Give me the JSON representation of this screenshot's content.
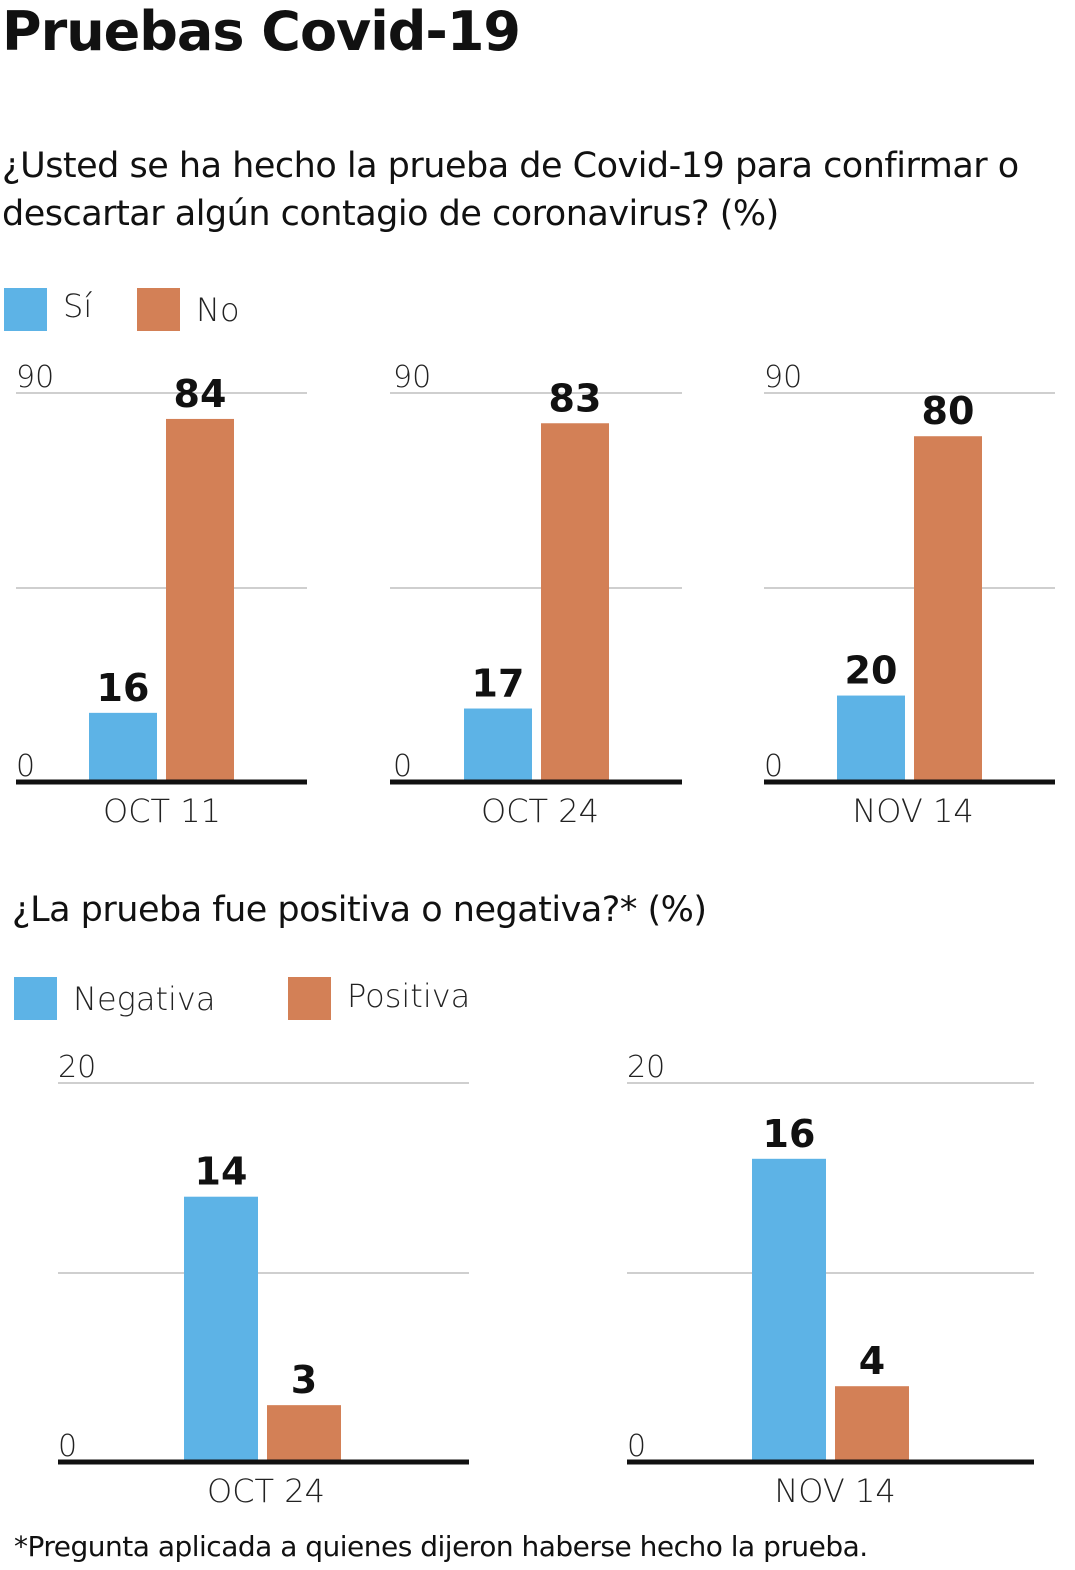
{
  "title": "Pruebas Covid-19",
  "colors": {
    "si": "#5db3e6",
    "no": "#d38056",
    "grid": "#cfcfcf",
    "axis": "#111111"
  },
  "section1": {
    "question": "¿Usted se ha hecho la prueba de Covid-19 para confirmar o descartar algún contagio de coronavirus? (%)",
    "legend": [
      {
        "label": "Sí",
        "color": "#5db3e6"
      },
      {
        "label": "No",
        "color": "#d38056"
      }
    ]
  },
  "section2": {
    "question": "¿La prueba fue positiva o negativa?* (%)",
    "legend": [
      {
        "label": "Negativa",
        "color": "#5db3e6"
      },
      {
        "label": "Positiva",
        "color": "#d38056"
      }
    ]
  },
  "chart_data": [
    {
      "type": "bar",
      "group": "section1",
      "title": "",
      "categories": [
        "OCT 11"
      ],
      "ylim": [
        0,
        90
      ],
      "yticks": [
        "0",
        "90"
      ],
      "series": [
        {
          "name": "Sí",
          "values": [
            16
          ]
        },
        {
          "name": "No",
          "values": [
            84
          ]
        }
      ]
    },
    {
      "type": "bar",
      "group": "section1",
      "title": "",
      "categories": [
        "OCT 24"
      ],
      "ylim": [
        0,
        90
      ],
      "yticks": [
        "0",
        "90"
      ],
      "series": [
        {
          "name": "Sí",
          "values": [
            17
          ]
        },
        {
          "name": "No",
          "values": [
            83
          ]
        }
      ]
    },
    {
      "type": "bar",
      "group": "section1",
      "title": "",
      "categories": [
        "NOV 14"
      ],
      "ylim": [
        0,
        90
      ],
      "yticks": [
        "0",
        "90"
      ],
      "series": [
        {
          "name": "Sí",
          "values": [
            20
          ]
        },
        {
          "name": "No",
          "values": [
            80
          ]
        }
      ]
    },
    {
      "type": "bar",
      "group": "section2",
      "title": "",
      "categories": [
        "OCT 24"
      ],
      "ylim": [
        0,
        20
      ],
      "yticks": [
        "0",
        "20"
      ],
      "series": [
        {
          "name": "Negativa",
          "values": [
            14
          ]
        },
        {
          "name": "Positiva",
          "values": [
            3
          ]
        }
      ]
    },
    {
      "type": "bar",
      "group": "section2",
      "title": "",
      "categories": [
        "NOV 14"
      ],
      "ylim": [
        0,
        20
      ],
      "yticks": [
        "0",
        "20"
      ],
      "series": [
        {
          "name": "Negativa",
          "values": [
            16
          ]
        },
        {
          "name": "Positiva",
          "values": [
            4
          ]
        }
      ]
    }
  ],
  "footnote": "*Pregunta aplicada a quienes dijeron haberse hecho la prueba."
}
